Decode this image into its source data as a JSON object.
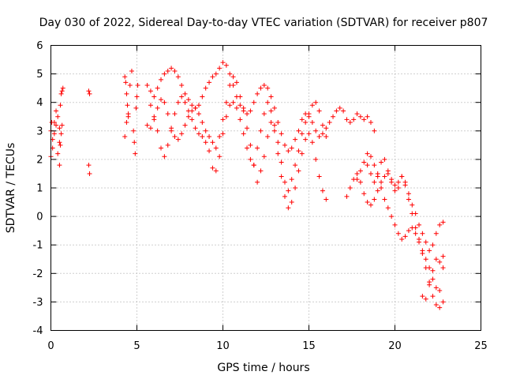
{
  "chart_data": {
    "type": "scatter",
    "title": "Day 030 of 2022, Sidereal Day-to-day VTEC variation (SDTVAR) for receiver p807",
    "xlabel": "GPS time / hours",
    "ylabel": "SDTVAR / TECUs",
    "xlim": [
      0,
      25
    ],
    "ylim": [
      -4,
      6
    ],
    "xticks": [
      0,
      5,
      10,
      15,
      20,
      25
    ],
    "yticks": [
      -4,
      -3,
      -2,
      -1,
      0,
      1,
      2,
      3,
      4,
      5,
      6
    ],
    "xtick_labels": [
      "0",
      "5",
      "10",
      "15",
      "20",
      "25"
    ],
    "ytick_labels": [
      "-4",
      "-3",
      "-2",
      "-1",
      "0",
      "1",
      "2",
      "3",
      "4",
      "5",
      "6"
    ],
    "grid": true,
    "marker": "+",
    "color": "#ff0000",
    "series": [
      {
        "name": "s1",
        "x": [
          0.0,
          0.1,
          0.2,
          0.3,
          0.4,
          0.5,
          0.55,
          0.6,
          0.65,
          0.7
        ],
        "y": [
          2.1,
          2.4,
          3.3,
          3.7,
          2.2,
          2.6,
          3.9,
          4.3,
          4.4,
          4.5
        ]
      },
      {
        "name": "s2",
        "x": [
          0.0,
          0.05,
          0.1,
          0.2,
          0.3,
          0.4,
          0.5
        ],
        "y": [
          3.0,
          3.3,
          2.7,
          2.9,
          3.2,
          3.5,
          3.1
        ]
      },
      {
        "name": "s3",
        "x": [
          0.5,
          0.55,
          0.6,
          0.65
        ],
        "y": [
          1.8,
          2.5,
          2.9,
          3.2
        ]
      },
      {
        "name": "s4",
        "x": [
          2.2,
          2.25,
          2.2,
          2.25
        ],
        "y": [
          4.4,
          4.3,
          1.8,
          1.5
        ]
      },
      {
        "name": "s5",
        "x": [
          4.3,
          4.4,
          4.5,
          4.6,
          4.7
        ],
        "y": [
          2.8,
          3.3,
          3.6,
          4.6,
          5.1
        ]
      },
      {
        "name": "s6",
        "x": [
          4.3,
          4.35,
          4.4,
          4.45,
          4.5
        ],
        "y": [
          4.9,
          4.7,
          4.3,
          3.9,
          3.5
        ]
      },
      {
        "name": "s7",
        "x": [
          4.8,
          4.85,
          4.9,
          4.95,
          5.0,
          5.05
        ],
        "y": [
          3.0,
          2.6,
          2.2,
          3.8,
          4.2,
          4.6
        ]
      },
      {
        "name": "s8",
        "x": [
          5.6,
          5.8,
          6.0,
          6.2,
          6.4,
          6.6,
          6.8,
          7.0,
          7.2,
          7.4,
          7.6,
          7.8,
          8.0,
          8.2,
          8.4,
          8.6,
          8.8,
          9.0,
          9.2,
          9.4,
          9.6,
          9.8,
          10.0,
          10.2,
          10.4,
          10.6,
          10.8,
          11.0,
          11.2,
          11.4,
          11.6,
          11.8,
          12.0,
          12.2,
          12.4,
          12.6,
          12.8,
          13.0,
          13.2,
          13.4,
          13.6,
          13.8,
          14.0,
          14.2,
          14.4,
          14.6,
          14.8,
          15.0,
          15.2,
          15.4,
          15.6,
          15.8,
          16.0,
          16.2,
          16.4,
          16.6,
          16.8,
          17.0,
          17.2,
          17.4,
          17.6,
          17.8,
          18.0,
          18.2,
          18.4,
          18.6,
          18.8
        ],
        "y": [
          4.6,
          4.4,
          4.2,
          4.5,
          4.8,
          5.0,
          5.1,
          5.2,
          5.1,
          4.9,
          4.6,
          4.3,
          4.1,
          3.9,
          3.8,
          3.9,
          4.2,
          4.5,
          4.7,
          4.9,
          5.0,
          5.2,
          5.4,
          5.3,
          5.0,
          4.6,
          4.2,
          3.9,
          3.8,
          3.6,
          3.7,
          4.0,
          4.3,
          4.5,
          4.6,
          4.5,
          4.2,
          3.8,
          3.3,
          2.9,
          2.5,
          2.3,
          2.4,
          2.7,
          3.0,
          3.4,
          3.6,
          3.5,
          3.3,
          3.0,
          2.8,
          2.9,
          3.1,
          3.3,
          3.5,
          3.7,
          3.8,
          3.7,
          3.4,
          3.3,
          3.4,
          3.6,
          3.5,
          3.4,
          3.5,
          3.3,
          3.0
        ]
      },
      {
        "name": "s9",
        "x": [
          5.6,
          5.8,
          6.0,
          6.2,
          6.4,
          6.6,
          6.8,
          7.0,
          7.2,
          7.4,
          7.6,
          7.8,
          8.0,
          8.2,
          8.4,
          8.6,
          8.8,
          9.0,
          9.2,
          9.4,
          9.6,
          9.8,
          10.0,
          10.2,
          10.4,
          10.6,
          10.8,
          11.0,
          11.2,
          11.4,
          11.6,
          11.8,
          12.0,
          12.2,
          12.4,
          12.6,
          12.8,
          13.0,
          13.2,
          13.4,
          13.6,
          13.8,
          14.0,
          14.2,
          14.4,
          14.6,
          14.8,
          15.0,
          15.2,
          15.4,
          15.6,
          15.8,
          16.0
        ],
        "y": [
          3.2,
          3.1,
          3.4,
          3.8,
          4.1,
          4.0,
          3.6,
          3.1,
          2.8,
          2.7,
          2.9,
          3.2,
          3.5,
          3.7,
          3.8,
          3.6,
          3.3,
          3.0,
          2.8,
          2.6,
          2.4,
          2.8,
          3.4,
          4.0,
          4.6,
          4.9,
          4.7,
          4.2,
          3.7,
          3.1,
          2.5,
          1.8,
          1.2,
          1.6,
          2.1,
          2.8,
          3.3,
          3.2,
          2.6,
          1.9,
          1.2,
          0.9,
          1.3,
          1.8,
          2.3,
          2.9,
          3.3,
          3.6,
          3.9,
          4.0,
          3.7,
          3.2,
          2.8
        ]
      },
      {
        "name": "s10",
        "x": [
          5.8,
          6.0,
          6.2,
          6.4,
          6.6,
          6.8,
          7.0,
          7.2,
          7.4,
          7.6,
          7.8,
          8.0,
          8.2,
          8.4,
          8.6,
          8.8,
          9.0,
          9.2,
          9.4,
          9.6,
          9.8,
          10.0,
          10.2,
          10.4,
          10.6,
          10.8,
          11.0,
          11.2,
          11.4,
          11.6,
          11.8,
          12.0,
          12.2,
          12.4,
          12.6,
          12.8,
          13.0,
          13.2,
          13.4,
          13.6,
          13.8,
          14.0,
          14.2,
          14.4,
          14.6,
          14.8,
          15.0,
          15.2,
          15.4,
          15.6,
          15.8,
          16.0
        ],
        "y": [
          3.9,
          3.5,
          3.0,
          2.4,
          2.1,
          2.5,
          3.0,
          3.6,
          4.0,
          4.2,
          4.0,
          3.7,
          3.4,
          3.1,
          2.9,
          2.8,
          2.6,
          2.3,
          1.7,
          1.6,
          2.1,
          2.9,
          3.5,
          3.9,
          4.0,
          3.8,
          3.4,
          2.9,
          2.4,
          2.0,
          1.8,
          2.4,
          3.0,
          3.6,
          4.0,
          3.7,
          3.0,
          2.2,
          1.4,
          0.7,
          0.3,
          0.5,
          1.0,
          1.6,
          2.2,
          2.7,
          2.9,
          2.6,
          2.0,
          1.4,
          0.9,
          0.6
        ]
      },
      {
        "name": "s11",
        "x": [
          17.2,
          17.4,
          17.6,
          17.8,
          18.0,
          18.2,
          18.4,
          18.6,
          18.8,
          19.0,
          19.2,
          19.4,
          19.6,
          19.8,
          20.0,
          20.2,
          20.4,
          20.6,
          20.8,
          21.0,
          21.2,
          21.4,
          21.6,
          21.8,
          22.0,
          22.2,
          22.4,
          22.6,
          22.8
        ],
        "y": [
          0.7,
          1.0,
          1.3,
          1.5,
          1.2,
          0.8,
          0.5,
          0.4,
          0.6,
          0.9,
          1.2,
          1.4,
          1.5,
          1.3,
          1.1,
          1.2,
          1.4,
          1.1,
          0.6,
          0.1,
          -0.4,
          -0.8,
          -1.2,
          -1.5,
          -1.8,
          -2.2,
          -2.5,
          -2.6,
          -1.8
        ]
      },
      {
        "name": "s12",
        "x": [
          17.8,
          18.0,
          18.2,
          18.4,
          18.6,
          18.8,
          19.0,
          19.2,
          19.4,
          19.6,
          19.8,
          20.0,
          20.2,
          20.4,
          20.6,
          20.8,
          21.0,
          21.2,
          21.4,
          21.6,
          21.8,
          22.0,
          22.2,
          22.4,
          22.6,
          22.8
        ],
        "y": [
          1.3,
          1.6,
          1.9,
          2.2,
          2.1,
          1.8,
          1.4,
          1.0,
          0.6,
          0.3,
          0.0,
          -0.3,
          -0.6,
          -0.8,
          -0.7,
          -0.5,
          -0.4,
          -0.6,
          -0.9,
          -1.3,
          -1.8,
          -2.3,
          -2.8,
          -3.1,
          -3.2,
          -3.0
        ]
      },
      {
        "name": "s13",
        "x": [
          18.4,
          18.6,
          18.8,
          19.0,
          19.2,
          19.4,
          19.6,
          19.8,
          20.0,
          20.2,
          20.4,
          20.6,
          20.8,
          21.0,
          21.2,
          21.4,
          21.6,
          21.8,
          22.0,
          22.2,
          22.4,
          22.6,
          22.8
        ],
        "y": [
          1.8,
          1.5,
          1.2,
          1.5,
          1.9,
          2.0,
          1.6,
          1.2,
          0.9,
          1.0,
          1.4,
          1.2,
          0.8,
          0.4,
          0.1,
          -0.3,
          -0.6,
          -0.9,
          -1.2,
          -1.0,
          -0.6,
          -0.3,
          -0.2
        ]
      },
      {
        "name": "s14",
        "x": [
          21.6,
          21.8,
          22.0,
          22.2,
          22.4,
          22.6,
          22.8
        ],
        "y": [
          -2.8,
          -2.9,
          -2.4,
          -1.9,
          -1.5,
          -1.6,
          -1.4
        ]
      }
    ]
  }
}
